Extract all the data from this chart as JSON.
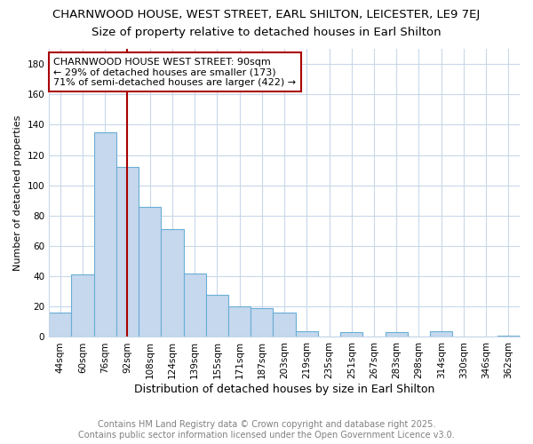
{
  "title1": "CHARNWOOD HOUSE, WEST STREET, EARL SHILTON, LEICESTER, LE9 7EJ",
  "title2": "Size of property relative to detached houses in Earl Shilton",
  "xlabel": "Distribution of detached houses by size in Earl Shilton",
  "ylabel": "Number of detached properties",
  "categories": [
    "44sqm",
    "60sqm",
    "76sqm",
    "92sqm",
    "108sqm",
    "124sqm",
    "139sqm",
    "155sqm",
    "171sqm",
    "187sqm",
    "203sqm",
    "219sqm",
    "235sqm",
    "251sqm",
    "267sqm",
    "283sqm",
    "298sqm",
    "314sqm",
    "330sqm",
    "346sqm",
    "362sqm"
  ],
  "values": [
    16,
    41,
    135,
    112,
    86,
    71,
    42,
    28,
    20,
    19,
    16,
    4,
    0,
    3,
    0,
    3,
    0,
    4,
    0,
    0,
    1
  ],
  "bar_color": "#c5d8ed",
  "bar_edge_color": "#6aaed6",
  "vline_x_index": 3,
  "vline_color": "#aa0000",
  "annotation_line1": "CHARNWOOD HOUSE WEST STREET: 90sqm",
  "annotation_line2": "← 29% of detached houses are smaller (173)",
  "annotation_line3": "71% of semi-detached houses are larger (422) →",
  "annotation_box_color": "#ffffff",
  "annotation_box_edge_color": "#aa0000",
  "ylim": [
    0,
    190
  ],
  "yticks": [
    0,
    20,
    40,
    60,
    80,
    100,
    120,
    140,
    160,
    180
  ],
  "footer_line1": "Contains HM Land Registry data © Crown copyright and database right 2025.",
  "footer_line2": "Contains public sector information licensed under the Open Government Licence v3.0.",
  "fig_bg_color": "#ffffff",
  "plot_bg_color": "#ffffff",
  "grid_color": "#c8d8ea",
  "title1_fontsize": 9.5,
  "title2_fontsize": 9.5,
  "xlabel_fontsize": 9,
  "ylabel_fontsize": 8,
  "tick_fontsize": 7.5,
  "annotation_fontsize": 8,
  "footer_fontsize": 7
}
